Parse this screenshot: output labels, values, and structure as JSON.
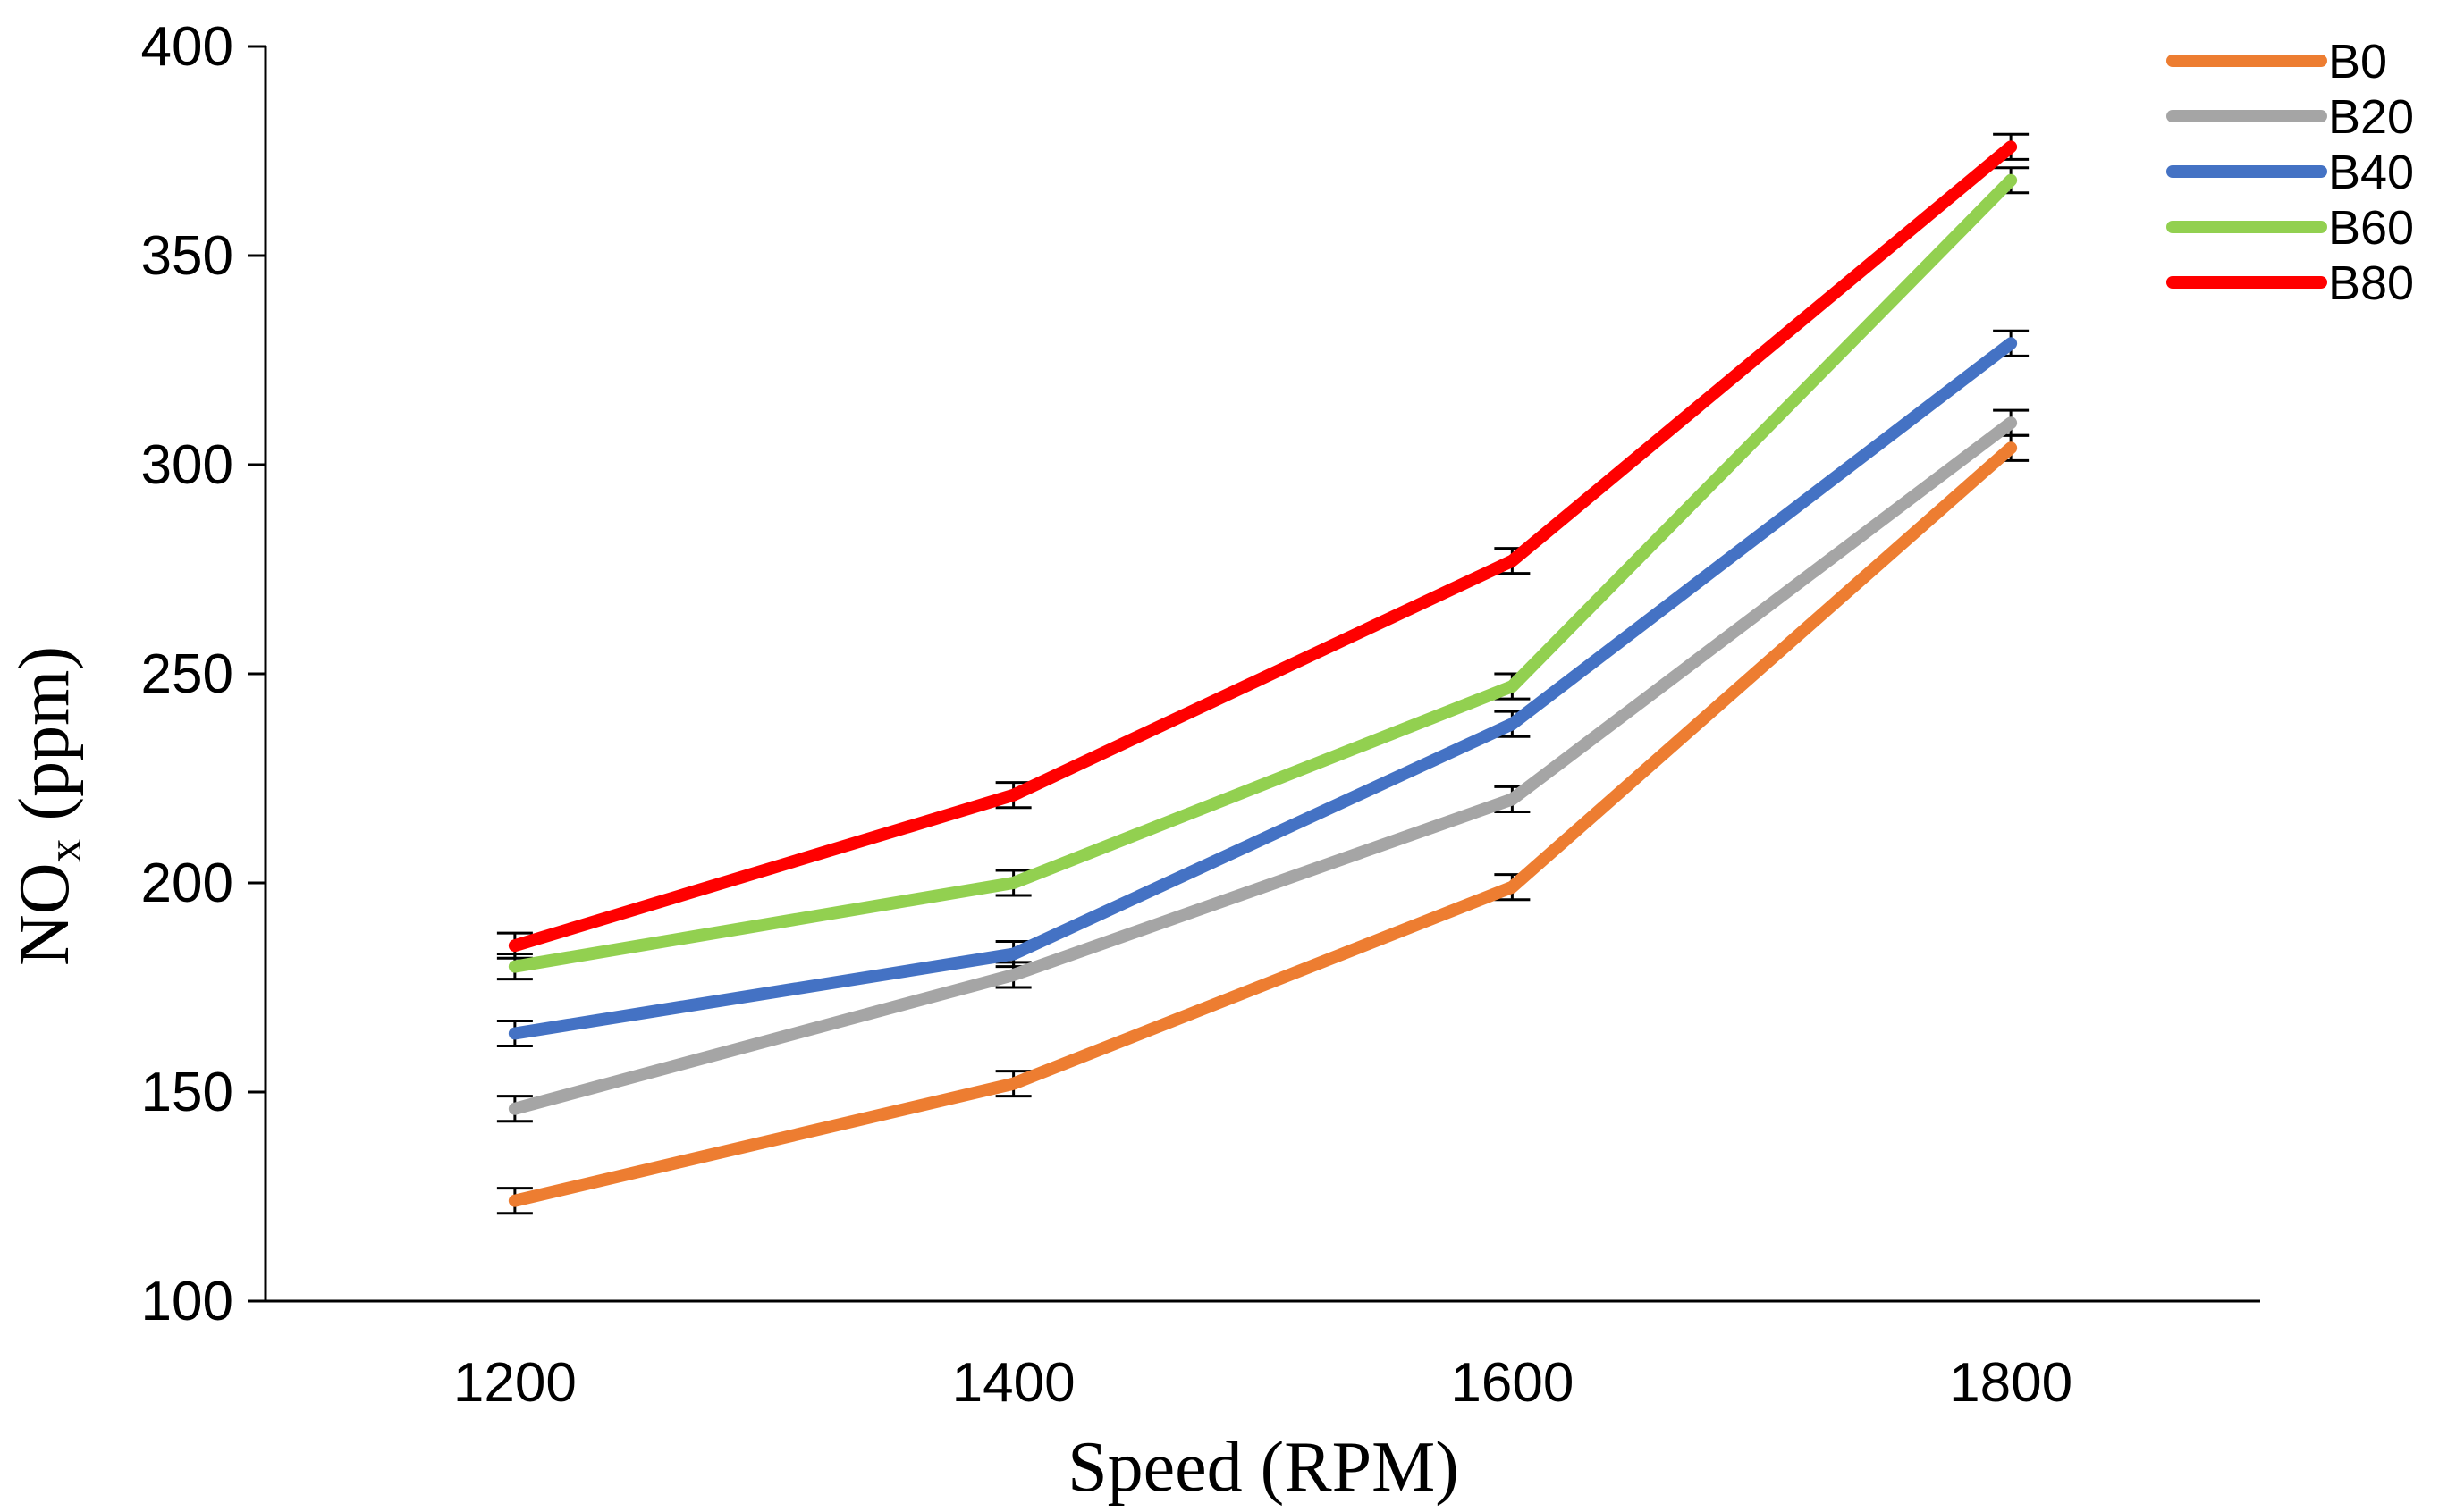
{
  "chart_data": {
    "type": "line",
    "xlabel": "Speed (RPM)",
    "ylabel_main": "NO",
    "ylabel_sub": "x",
    "ylabel_unit": " (ppm)",
    "x": [
      1200,
      1400,
      1600,
      1800
    ],
    "xlim": [
      1100,
      1900
    ],
    "ylim": [
      100,
      400
    ],
    "y_ticks": [
      100,
      150,
      200,
      250,
      300,
      350,
      400
    ],
    "x_ticks": [
      1200,
      1400,
      1600,
      1800
    ],
    "grid": false,
    "legend_position": "top-right",
    "error_bar": 3,
    "series": [
      {
        "name": "B0",
        "color": "#ED7D31",
        "values": [
          124,
          152,
          199,
          304
        ]
      },
      {
        "name": "B20",
        "color": "#A5A5A5",
        "values": [
          146,
          178,
          220,
          310
        ]
      },
      {
        "name": "B40",
        "color": "#4472C4",
        "values": [
          164,
          183,
          238,
          329
        ]
      },
      {
        "name": "B60",
        "color": "#92D050",
        "values": [
          180,
          200,
          247,
          368
        ]
      },
      {
        "name": "B80",
        "color": "#FF0000",
        "values": [
          185,
          221,
          277,
          376
        ]
      }
    ]
  }
}
